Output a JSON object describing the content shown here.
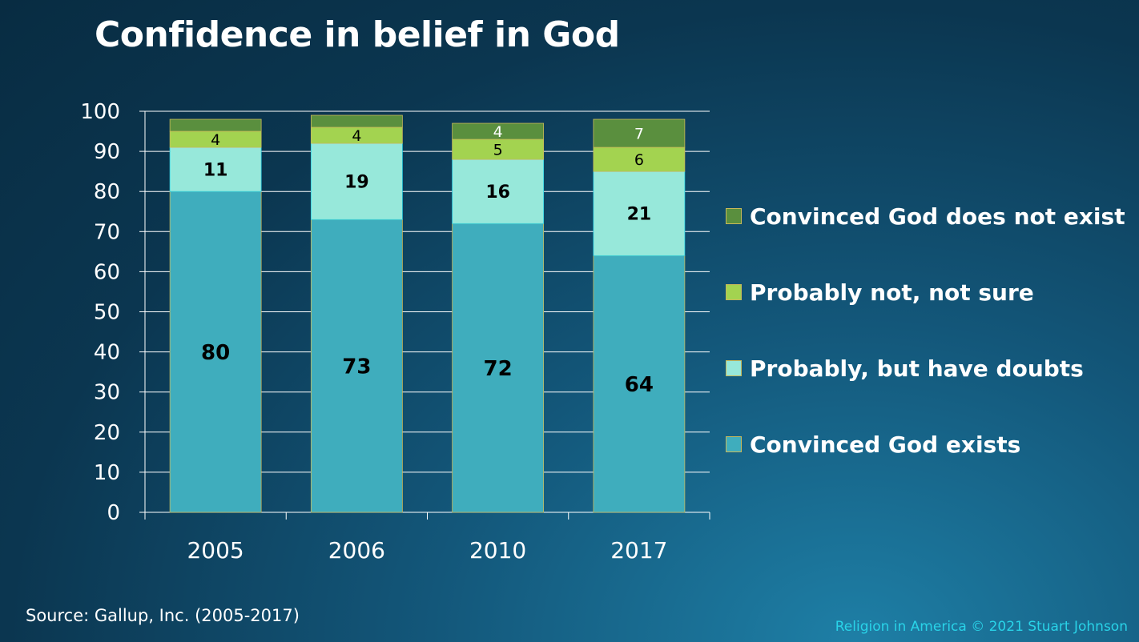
{
  "title": "Confidence in belief in God",
  "source": "Source: Gallup, Inc. (2005-2017)",
  "credit": "Religion in America © 2021 Stuart Johnson",
  "chart_data": {
    "type": "bar",
    "stacked": true,
    "categories": [
      "2005",
      "2006",
      "2010",
      "2017"
    ],
    "series": [
      {
        "name": "Convinced God exists",
        "values": [
          80,
          73,
          72,
          64
        ],
        "color": "#3fadbd"
      },
      {
        "name": "Probably, but have doubts",
        "values": [
          11,
          19,
          16,
          21
        ],
        "color": "#97e8da"
      },
      {
        "name": "Probably not, not sure",
        "values": [
          4,
          4,
          5,
          6
        ],
        "color": "#a3d350"
      },
      {
        "name": "Convinced God does not exist",
        "values": [
          3,
          3,
          4,
          7
        ],
        "color": "#5a8f3e"
      }
    ],
    "data_labels": [
      [
        "80",
        "73",
        "72",
        "64"
      ],
      [
        "11",
        "19",
        "16",
        "21"
      ],
      [
        "4",
        "4",
        "5",
        "6"
      ],
      [
        "",
        "",
        "4",
        "7"
      ]
    ],
    "yticks": [
      "0",
      "10",
      "20",
      "30",
      "40",
      "50",
      "60",
      "70",
      "80",
      "90",
      "100"
    ],
    "ylim": [
      0,
      100
    ],
    "grid": true,
    "legend_position": "right",
    "legend_order": [
      3,
      2,
      1,
      0
    ]
  }
}
